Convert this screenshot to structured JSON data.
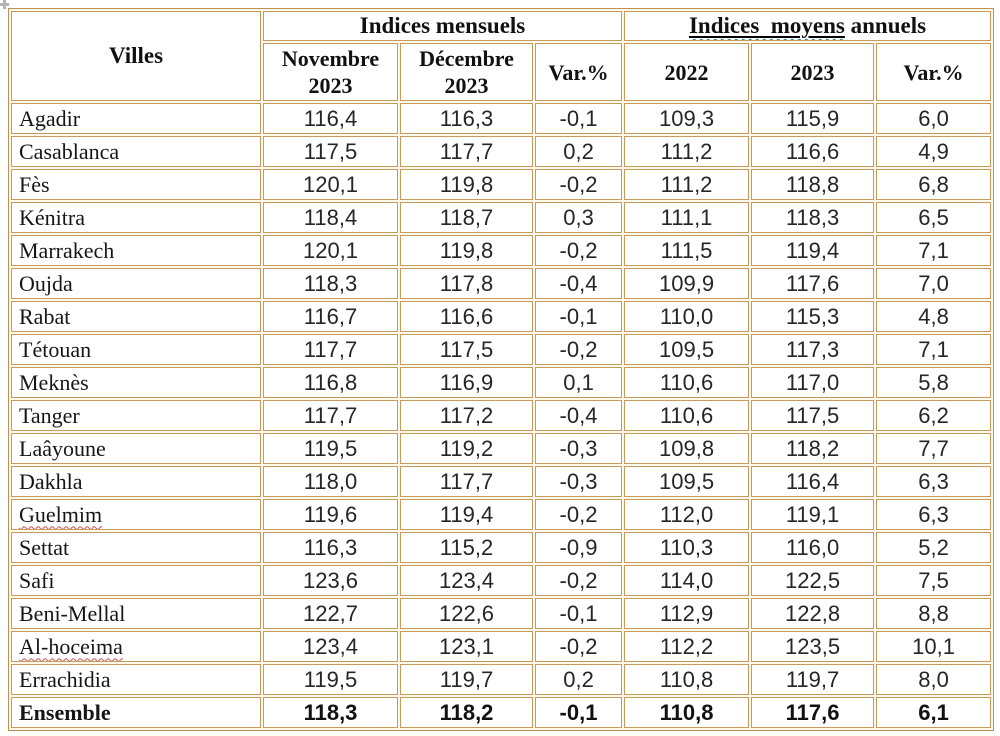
{
  "colors": {
    "cell_border": "#c69b5c",
    "outer_border": "#bd9152",
    "spellcheck_red": "#c7564e",
    "grammar_teal": "#2e7f8d",
    "text": "#1c1c1c"
  },
  "chart_data": {
    "type": "table",
    "title": "",
    "header": {
      "villes": "Villes",
      "group_monthly": "Indices mensuels",
      "group_annual_underlined": "Indices  moyens",
      "group_annual_rest": " annuels",
      "columns": [
        "Novembre 2023",
        "Décembre 2023",
        "Var.%",
        "2022",
        "2023",
        "Var.%"
      ]
    },
    "rows": [
      {
        "city": "Agadir",
        "values": [
          "116,4",
          "116,3",
          "-0,1",
          "109,3",
          "115,9",
          "6,0"
        ]
      },
      {
        "city": "Casablanca",
        "values": [
          "117,5",
          "117,7",
          "0,2",
          "111,2",
          "116,6",
          "4,9"
        ]
      },
      {
        "city": "Fès",
        "values": [
          "120,1",
          "119,8",
          "-0,2",
          "111,2",
          "118,8",
          "6,8"
        ]
      },
      {
        "city": "Kénitra",
        "values": [
          "118,4",
          "118,7",
          "0,3",
          "111,1",
          "118,3",
          "6,5"
        ]
      },
      {
        "city": "Marrakech",
        "values": [
          "120,1",
          "119,8",
          "-0,2",
          "111,5",
          "119,4",
          "7,1"
        ]
      },
      {
        "city": "Oujda",
        "values": [
          "118,3",
          "117,8",
          "-0,4",
          "109,9",
          "117,6",
          "7,0"
        ]
      },
      {
        "city": "Rabat",
        "values": [
          "116,7",
          "116,6",
          "-0,1",
          "110,0",
          "115,3",
          "4,8"
        ]
      },
      {
        "city": "Tétouan",
        "values": [
          "117,7",
          "117,5",
          "-0,2",
          "109,5",
          "117,3",
          "7,1"
        ]
      },
      {
        "city": "Meknès",
        "values": [
          "116,8",
          "116,9",
          "0,1",
          "110,6",
          "117,0",
          "5,8"
        ]
      },
      {
        "city": "Tanger",
        "values": [
          "117,7",
          "117,2",
          "-0,4",
          "110,6",
          "117,5",
          "6,2"
        ]
      },
      {
        "city": "Laâyoune",
        "values": [
          "119,5",
          "119,2",
          "-0,3",
          "109,8",
          "118,2",
          "7,7"
        ]
      },
      {
        "city": "Dakhla",
        "values": [
          "118,0",
          "117,7",
          "-0,3",
          "109,5",
          "116,4",
          "6,3"
        ]
      },
      {
        "city": "Guelmim",
        "values": [
          "119,6",
          "119,4",
          "-0,2",
          "112,0",
          "119,1",
          "6,3"
        ],
        "squiggle": true
      },
      {
        "city": "Settat",
        "values": [
          "116,3",
          "115,2",
          "-0,9",
          "110,3",
          "116,0",
          "5,2"
        ]
      },
      {
        "city": "Safi",
        "values": [
          "123,6",
          "123,4",
          "-0,2",
          "114,0",
          "122,5",
          "7,5"
        ]
      },
      {
        "city": "Beni-Mellal",
        "values": [
          "122,7",
          "122,6",
          "-0,1",
          "112,9",
          "122,8",
          "8,8"
        ]
      },
      {
        "city": "Al-hoceima",
        "values": [
          "123,4",
          "123,1",
          "-0,2",
          "112,2",
          "123,5",
          "10,1"
        ],
        "squiggle": true
      },
      {
        "city": "Errachidia",
        "values": [
          "119,5",
          "119,7",
          "0,2",
          "110,8",
          "119,7",
          "8,0"
        ]
      },
      {
        "city": "Ensemble",
        "values": [
          "118,3",
          "118,2",
          "-0,1",
          "110,8",
          "117,6",
          "6,1"
        ],
        "bold": true
      }
    ]
  }
}
